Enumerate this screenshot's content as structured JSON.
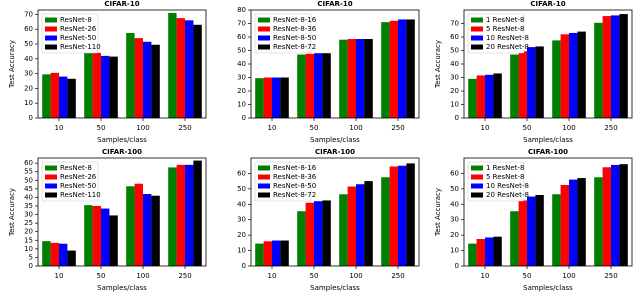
{
  "chart_data": [
    {
      "type": "bar",
      "title": "CIFAR-10",
      "xlabel": "Samples/class",
      "ylabel": "Test Accuracy",
      "categories": [
        "10",
        "50",
        "100",
        "250"
      ],
      "ylim": [
        0,
        73
      ],
      "yticks": [
        0,
        10,
        20,
        30,
        40,
        50,
        60,
        70
      ],
      "legend": "upper left",
      "series": [
        {
          "name": "ResNet-8",
          "color": "#008000",
          "values": [
            29.5,
            47,
            57.5,
            71
          ]
        },
        {
          "name": "ResNet-26",
          "color": "#ff0000",
          "values": [
            30.5,
            44,
            54,
            67.5
          ]
        },
        {
          "name": "ResNet-50",
          "color": "#0000ff",
          "values": [
            28,
            42,
            51.5,
            66
          ]
        },
        {
          "name": "ResNet-110",
          "color": "#000000",
          "values": [
            26.5,
            41.5,
            49.5,
            63
          ]
        }
      ]
    },
    {
      "type": "bar",
      "title": "CIFAR-10",
      "xlabel": "Samples/class",
      "categories": [
        "10",
        "50",
        "100",
        "250"
      ],
      "ylim": [
        0,
        80
      ],
      "yticks": [
        0,
        10,
        20,
        30,
        40,
        50,
        60,
        70,
        80
      ],
      "legend": "upper left",
      "series": [
        {
          "name": "ResNet-8-16",
          "color": "#008000",
          "values": [
            29.5,
            47,
            58,
            71
          ]
        },
        {
          "name": "ResNet-8-36",
          "color": "#ff0000",
          "values": [
            30,
            47.5,
            58.5,
            72
          ]
        },
        {
          "name": "ResNet-8-50",
          "color": "#0000ff",
          "values": [
            30,
            48,
            58.5,
            73
          ]
        },
        {
          "name": "ResNet-8-72",
          "color": "#000000",
          "values": [
            30,
            48,
            58.5,
            73
          ]
        }
      ]
    },
    {
      "type": "bar",
      "title": "CIFAR-10",
      "xlabel": "Samples/class",
      "ylabel": "Test Accuracy",
      "categories": [
        "10",
        "50",
        "100",
        "250"
      ],
      "ylim": [
        0,
        80
      ],
      "yticks": [
        0,
        10,
        20,
        30,
        40,
        50,
        60,
        70
      ],
      "legend": "upper left",
      "series": [
        {
          "name": "1 ResNet-8",
          "color": "#008000",
          "values": [
            29,
            47,
            57.5,
            70.5
          ]
        },
        {
          "name": "5 ResNet-8",
          "color": "#ff0000",
          "values": [
            31.5,
            49.5,
            62,
            75.5
          ]
        },
        {
          "name": "10 ResNet-8",
          "color": "#0000ff",
          "values": [
            32,
            52.5,
            63,
            76
          ]
        },
        {
          "name": "20 ResNet-8",
          "color": "#000000",
          "values": [
            33,
            53,
            64,
            77
          ]
        }
      ]
    },
    {
      "type": "bar",
      "title": "CIFAR-100",
      "xlabel": "Samples/class",
      "ylabel": "Test Accuracy",
      "categories": [
        "10",
        "50",
        "100",
        "250"
      ],
      "ylim": [
        0,
        63
      ],
      "yticks": [
        0,
        5,
        10,
        15,
        20,
        25,
        30,
        35,
        40,
        45,
        50,
        55,
        60
      ],
      "legend": "upper left",
      "series": [
        {
          "name": "ResNet-8",
          "color": "#008000",
          "values": [
            14.5,
            35.5,
            46.5,
            57.5
          ]
        },
        {
          "name": "ResNet-26",
          "color": "#ff0000",
          "values": [
            13.5,
            35,
            48,
            59
          ]
        },
        {
          "name": "ResNet-50",
          "color": "#0000ff",
          "values": [
            13,
            33.5,
            42,
            59
          ]
        },
        {
          "name": "ResNet-110",
          "color": "#000000",
          "values": [
            9,
            29.5,
            41,
            61.5
          ]
        }
      ]
    },
    {
      "type": "bar",
      "title": "CIFAR-100",
      "xlabel": "Samples/class",
      "categories": [
        "10",
        "50",
        "100",
        "250"
      ],
      "ylim": [
        0,
        70
      ],
      "yticks": [
        0,
        10,
        20,
        30,
        40,
        50,
        60
      ],
      "legend": "upper left",
      "series": [
        {
          "name": "ResNet-8-16",
          "color": "#008000",
          "values": [
            14.5,
            35.5,
            46.5,
            57.5
          ]
        },
        {
          "name": "ResNet-8-36",
          "color": "#ff0000",
          "values": [
            16,
            41,
            51.5,
            64.5
          ]
        },
        {
          "name": "ResNet-8-50",
          "color": "#0000ff",
          "values": [
            16.5,
            42,
            53,
            65
          ]
        },
        {
          "name": "ResNet-8-72",
          "color": "#000000",
          "values": [
            16.5,
            42.5,
            55,
            66.5
          ]
        }
      ]
    },
    {
      "type": "bar",
      "title": "CIFAR-100",
      "xlabel": "Samples/class",
      "ylabel": "Test Accuracy",
      "categories": [
        "10",
        "50",
        "100",
        "250"
      ],
      "ylim": [
        0,
        70
      ],
      "yticks": [
        0,
        10,
        20,
        30,
        40,
        50,
        60
      ],
      "legend": "upper left",
      "series": [
        {
          "name": "1 ResNet-8",
          "color": "#008000",
          "values": [
            14.5,
            35.5,
            46.5,
            57.5
          ]
        },
        {
          "name": "5 ResNet-8",
          "color": "#ff0000",
          "values": [
            17.5,
            42.5,
            52.5,
            64
          ]
        },
        {
          "name": "10 ResNet-8",
          "color": "#0000ff",
          "values": [
            18.5,
            45,
            56,
            65.5
          ]
        },
        {
          "name": "20 ResNet-8",
          "color": "#000000",
          "values": [
            19,
            46,
            57,
            66
          ]
        }
      ]
    }
  ]
}
